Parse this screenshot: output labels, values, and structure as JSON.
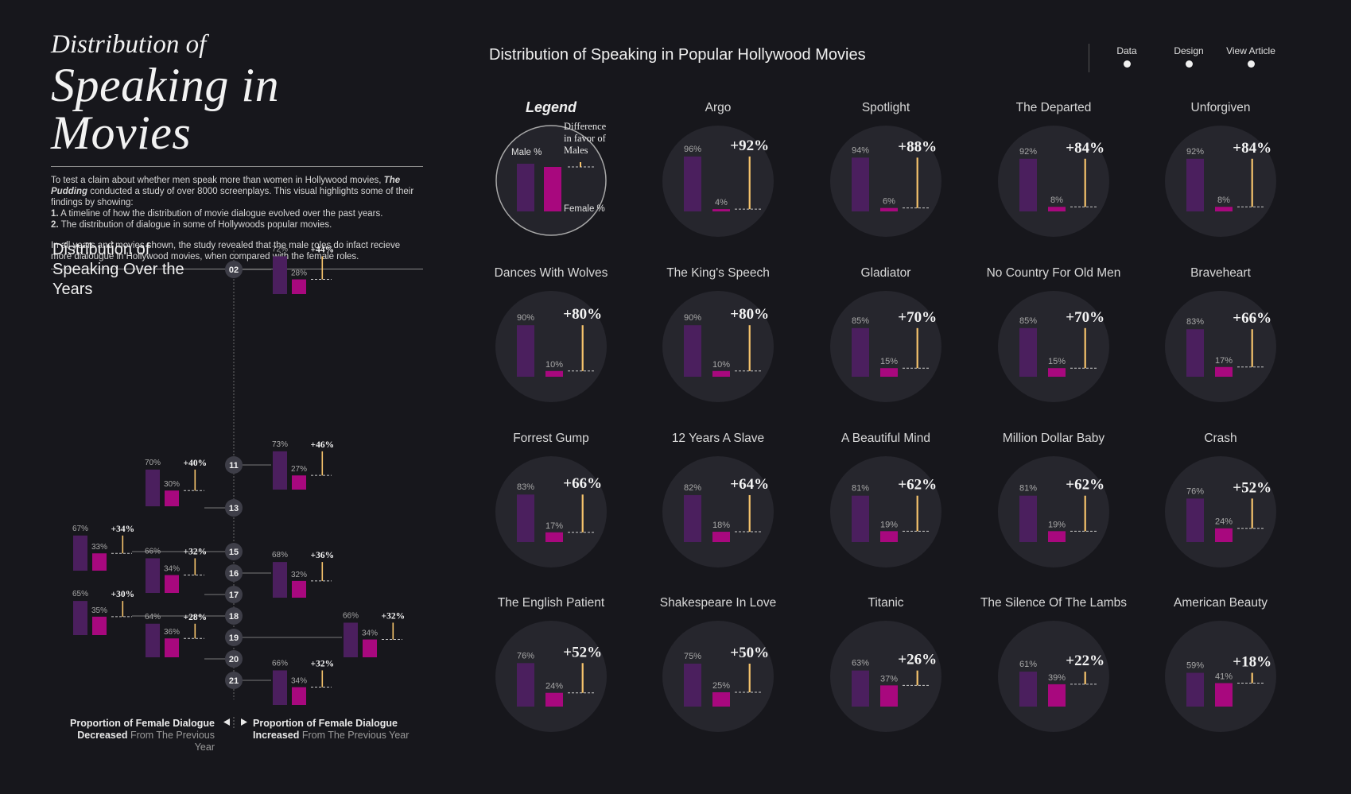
{
  "header": {
    "title_line1": "Distribution of",
    "title_line2": "Speaking in Movies",
    "intro_a": "To test a claim about whether men speak more than women in Hollywood movies, ",
    "intro_b": "The Pudding",
    "intro_c": " conducted a study of over 8000 screenplays. This visual highlights some of their findings by showing:",
    "point1_num": "1.",
    "point1": " A timeline of how the distribution of movie dialogue evolved over the past years.",
    "point2_num": "2.",
    "point2": " The distribution of dialogue in some of Hollywoods popular movies.",
    "conclusion": "In all years and movies shown, the study revealed that the male roles do infact recieve more dialougue in Hollywood movies, when compared with the female roles."
  },
  "timeline_title": "Distribution of Speaking Over the Years",
  "axis_labels": {
    "left_line1": "Proportion of Female Dialogue",
    "left_bold": "Decreased",
    "left_rest": " From The Previous Year",
    "right_line1": "Proportion of Female Dialogue",
    "right_bold": "Increased",
    "right_rest": " From The Previous Year"
  },
  "main_title": "Distribution of Speaking in Popular Hollywood Movies",
  "nav": {
    "data": "Data",
    "design": "Design",
    "article": "View Article"
  },
  "legend": {
    "title": "Legend",
    "male": "Male %",
    "female": "Female %",
    "diff": [
      "Difference",
      "in favor of",
      "Males"
    ]
  },
  "colors": {
    "male": "#4b1f5e",
    "female": "#a8087e",
    "diff": "#f7c46c",
    "background": "#17171c",
    "circle": "#26262d"
  },
  "chart_data": [
    {
      "type": "bar",
      "title": "Distribution of Speaking Over the Years",
      "points": [
        {
          "year": "02",
          "male": 72,
          "female": 28,
          "diff": "+44%",
          "side": "right"
        },
        {
          "year": "11",
          "male": 73,
          "female": 27,
          "diff": "+46%",
          "side": "right"
        },
        {
          "year": "13",
          "male": 70,
          "female": 30,
          "diff": "+40%",
          "side": "left"
        },
        {
          "year": "15",
          "male": 67,
          "female": 33,
          "diff": "+34%",
          "side": "left"
        },
        {
          "year": "16",
          "male": 68,
          "female": 32,
          "diff": "+36%",
          "side": "right"
        },
        {
          "year": "17",
          "male": 66,
          "female": 34,
          "diff": "+32%",
          "side": "left"
        },
        {
          "year": "18",
          "male": 65,
          "female": 35,
          "diff": "+30%",
          "side": "left"
        },
        {
          "year": "19",
          "male": 66,
          "female": 34,
          "diff": "+32%",
          "side": "right"
        },
        {
          "year": "20",
          "male": 64,
          "female": 36,
          "diff": "+28%",
          "side": "left"
        },
        {
          "year": "21",
          "male": 66,
          "female": 34,
          "diff": "+32%",
          "side": "right"
        }
      ]
    },
    {
      "type": "bar",
      "title": "Distribution of Speaking in Popular Hollywood Movies",
      "movies": [
        {
          "name": "Argo",
          "male": 96,
          "female": 4,
          "diff": "+92%"
        },
        {
          "name": "Spotlight",
          "male": 94,
          "female": 6,
          "diff": "+88%"
        },
        {
          "name": "The Departed",
          "male": 92,
          "female": 8,
          "diff": "+84%"
        },
        {
          "name": "Unforgiven",
          "male": 92,
          "female": 8,
          "diff": "+84%"
        },
        {
          "name": "Dances With Wolves",
          "male": 90,
          "female": 10,
          "diff": "+80%"
        },
        {
          "name": "The King's Speech",
          "male": 90,
          "female": 10,
          "diff": "+80%"
        },
        {
          "name": "Gladiator",
          "male": 85,
          "female": 15,
          "diff": "+70%"
        },
        {
          "name": "No Country For Old Men",
          "male": 85,
          "female": 15,
          "diff": "+70%"
        },
        {
          "name": "Braveheart",
          "male": 83,
          "female": 17,
          "diff": "+66%"
        },
        {
          "name": "Forrest Gump",
          "male": 83,
          "female": 17,
          "diff": "+66%"
        },
        {
          "name": "12 Years A Slave",
          "male": 82,
          "female": 18,
          "diff": "+64%"
        },
        {
          "name": "A Beautiful Mind",
          "male": 81,
          "female": 19,
          "diff": "+62%"
        },
        {
          "name": "Million Dollar Baby",
          "male": 81,
          "female": 19,
          "diff": "+62%"
        },
        {
          "name": "Crash",
          "male": 76,
          "female": 24,
          "diff": "+52%"
        },
        {
          "name": "The English Patient",
          "male": 76,
          "female": 24,
          "diff": "+52%"
        },
        {
          "name": "Shakespeare In Love",
          "male": 75,
          "female": 25,
          "diff": "+50%"
        },
        {
          "name": "Titanic",
          "male": 63,
          "female": 37,
          "diff": "+26%"
        },
        {
          "name": "The Silence Of The Lambs",
          "male": 61,
          "female": 39,
          "diff": "+22%"
        },
        {
          "name": "American Beauty",
          "male": 59,
          "female": 41,
          "diff": "+18%"
        }
      ]
    }
  ]
}
